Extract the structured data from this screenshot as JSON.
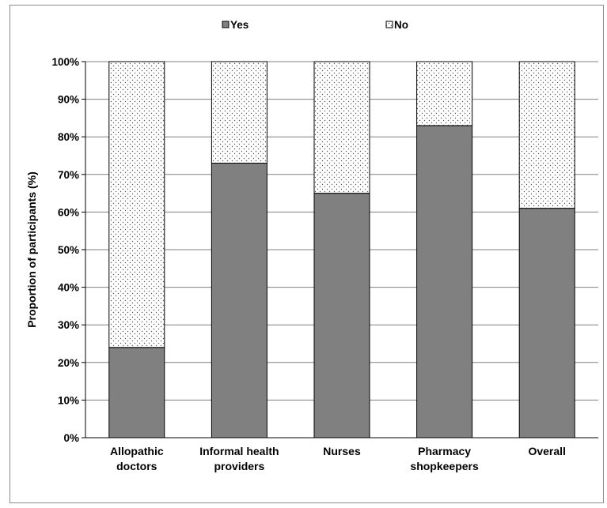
{
  "chart_data": {
    "type": "bar",
    "stacked": true,
    "percent_stacked": true,
    "categories": [
      [
        "Allopathic",
        "doctors"
      ],
      [
        "Informal health",
        "providers"
      ],
      [
        "Nurses"
      ],
      [
        "Pharmacy",
        "shopkeepers"
      ],
      [
        "Overall"
      ]
    ],
    "series": [
      {
        "name": "Yes",
        "values": [
          24,
          73,
          65,
          83,
          61
        ],
        "fill": "#808080",
        "pattern": "solid"
      },
      {
        "name": "No",
        "values": [
          76,
          27,
          35,
          17,
          39
        ],
        "fill": "#ffffff",
        "pattern": "dots"
      }
    ],
    "title": "",
    "xlabel": "",
    "ylabel": "Proportion of participants (%)",
    "ylim": [
      0,
      100
    ],
    "yticks": [
      "0%",
      "10%",
      "20%",
      "30%",
      "40%",
      "50%",
      "60%",
      "70%",
      "80%",
      "90%",
      "100%"
    ],
    "grid": "horizontal",
    "legend_position": "top-center",
    "colors": {
      "yes": "#808080",
      "no_dot": "#555555",
      "grid": "#808080",
      "axis": "#000000"
    }
  }
}
